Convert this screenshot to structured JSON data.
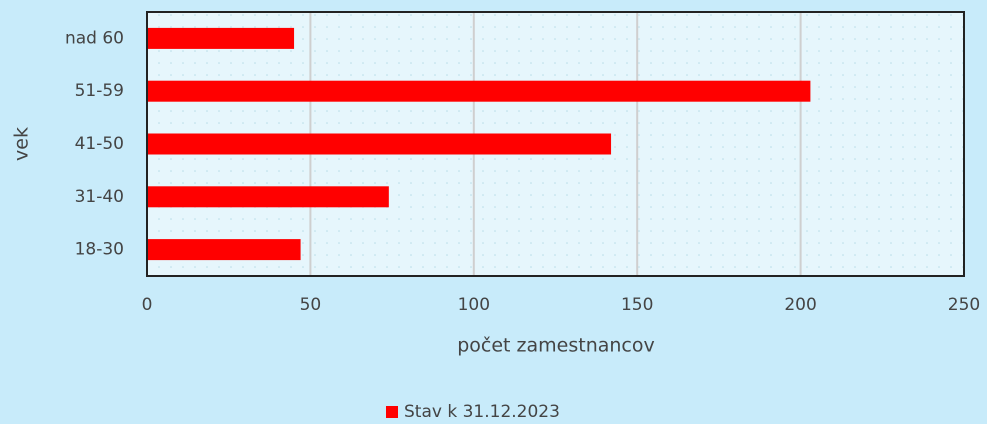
{
  "chart_data": {
    "type": "bar",
    "orientation": "horizontal",
    "categories": [
      "nad 60",
      "51-59",
      "41-50",
      "31-40",
      "18-30"
    ],
    "series": [
      {
        "name": "Stav k 31.12.2023",
        "color": "#ff0000",
        "values": [
          45,
          203,
          142,
          74,
          47
        ]
      }
    ],
    "xlabel": "počet zamestnancov",
    "ylabel": "vek",
    "xlim": [
      0,
      250
    ],
    "xticks": [
      0,
      50,
      100,
      150,
      200,
      250
    ],
    "grid": true,
    "legend": "bottom"
  }
}
